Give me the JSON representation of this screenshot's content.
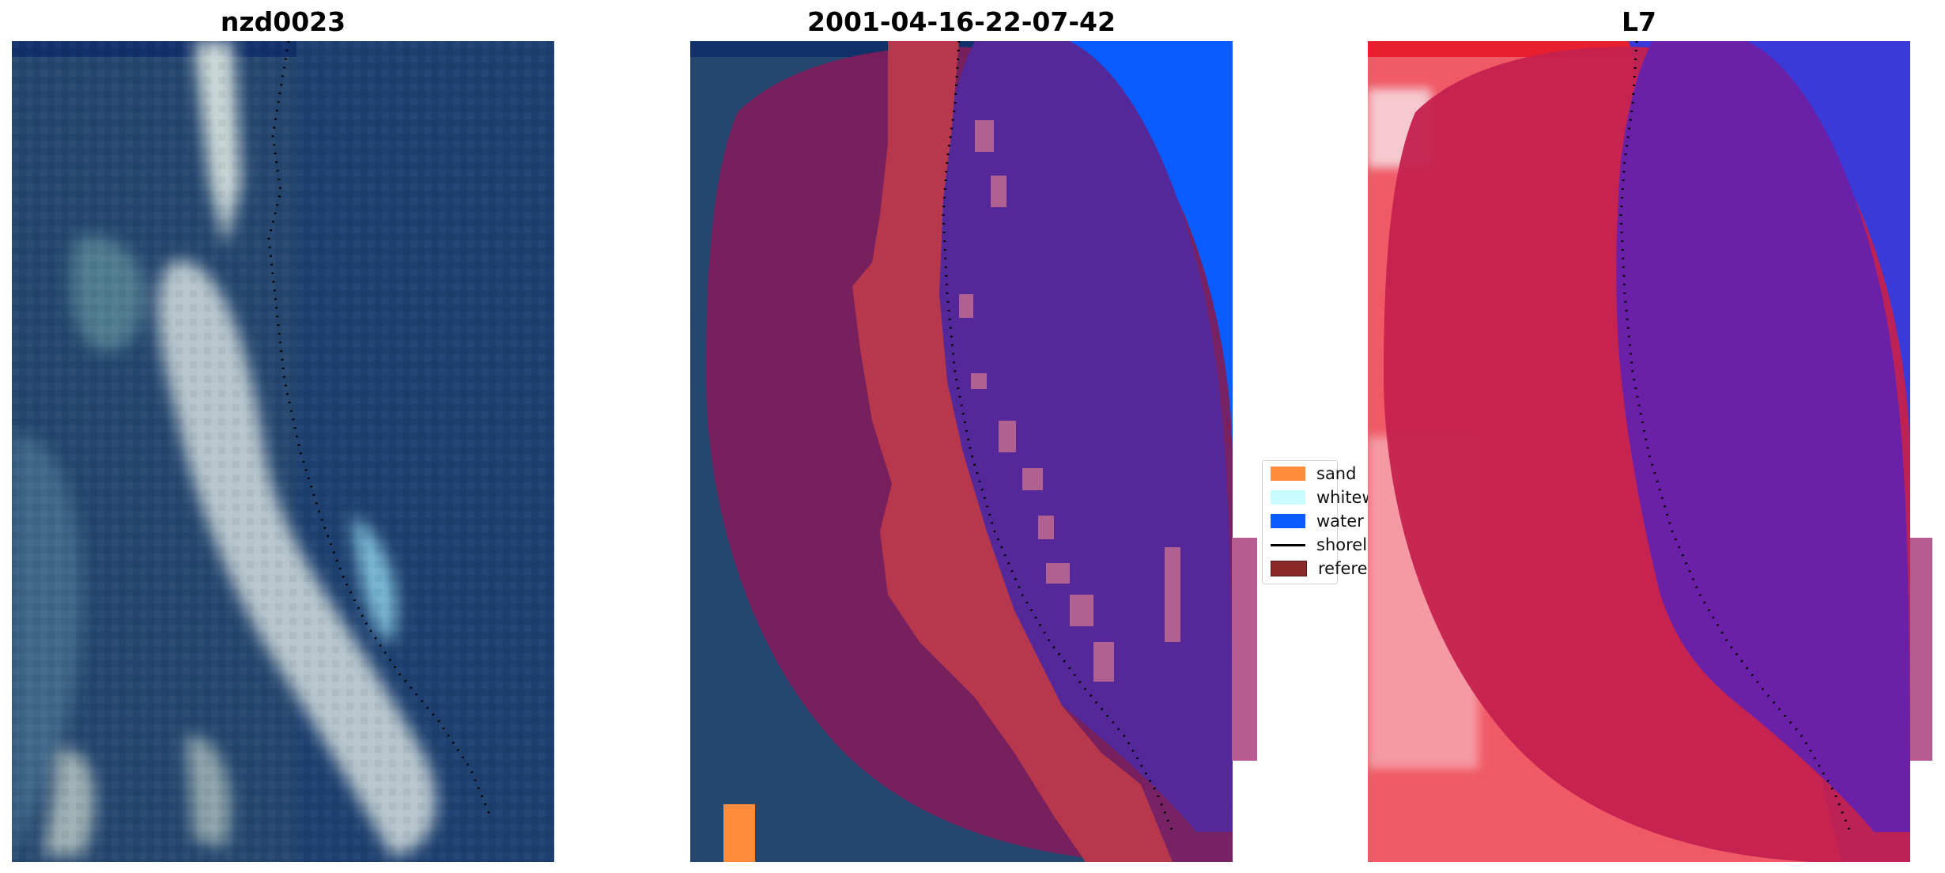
{
  "panels": [
    {
      "title": "nzd0023"
    },
    {
      "title": "2001-04-16-22-07-42"
    },
    {
      "title": "L7"
    }
  ],
  "legend": {
    "items": [
      {
        "label": "sand",
        "color": "#ff8c3a"
      },
      {
        "label": "whitewater",
        "color": "#c8fbff"
      },
      {
        "label": "water",
        "color": "#0b5cff"
      },
      {
        "label": "shoreline",
        "color": "#000000"
      },
      {
        "label": "reference",
        "color": "#8b2a2a"
      }
    ]
  },
  "colors": {
    "ocean": "#1f3f6a",
    "land": "#3a6690",
    "overlay_land": "#7c1f5c",
    "sand_class": "#b7384d",
    "water_class": "#5a2a9a",
    "water_bright": "#0a5cff",
    "l7_land": "#c4214f",
    "l7_water": "#6b20a8"
  }
}
